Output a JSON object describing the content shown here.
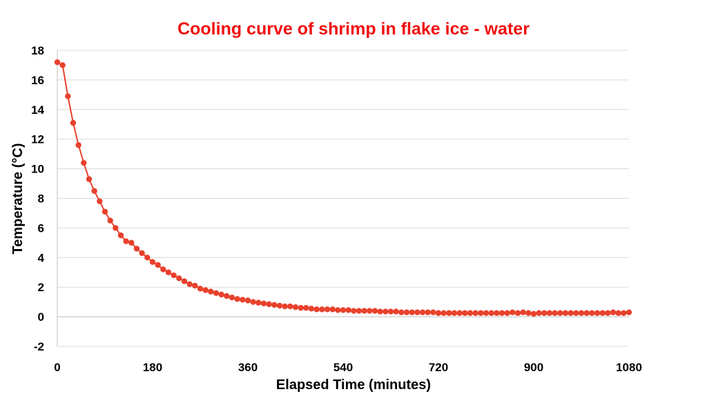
{
  "chart_data": {
    "type": "line",
    "title": "Cooling curve of shrimp in flake ice - water",
    "xlabel": "Elapsed Time (minutes)",
    "ylabel": "Temperature (°C)",
    "xlim": [
      0,
      1080
    ],
    "ylim": [
      -2,
      18
    ],
    "x_ticks": [
      0,
      180,
      360,
      540,
      720,
      900,
      1080
    ],
    "y_ticks": [
      -2,
      0,
      2,
      4,
      6,
      8,
      10,
      12,
      14,
      16,
      18
    ],
    "grid": "horizontal",
    "legend": "none",
    "colors": {
      "series": "#E8412C",
      "title": "#F20F0F",
      "grid": "#D9D9D9",
      "axis": "#BFBFBF"
    },
    "series": [
      {
        "x": [
          0,
          10,
          20,
          30,
          40,
          50,
          60,
          70,
          80,
          90,
          100,
          110,
          120,
          130,
          140,
          150,
          160,
          170,
          180,
          190,
          200,
          210,
          220,
          230,
          240,
          250,
          260,
          270,
          280,
          290,
          300,
          310,
          320,
          330,
          340,
          350,
          360,
          370,
          380,
          390,
          400,
          410,
          420,
          430,
          440,
          450,
          460,
          470,
          480,
          490,
          500,
          510,
          520,
          530,
          540,
          550,
          560,
          570,
          580,
          590,
          600,
          610,
          620,
          630,
          640,
          650,
          660,
          670,
          680,
          690,
          700,
          710,
          720,
          730,
          740,
          750,
          760,
          770,
          780,
          790,
          800,
          810,
          820,
          830,
          840,
          850,
          860,
          870,
          880,
          890,
          900,
          910,
          920,
          930,
          940,
          950,
          960,
          970,
          980,
          990,
          1000,
          1010,
          1020,
          1030,
          1040,
          1050,
          1060,
          1070,
          1080
        ],
        "y": [
          17.2,
          17.0,
          14.9,
          13.1,
          11.6,
          10.4,
          9.3,
          8.5,
          7.8,
          7.1,
          6.5,
          6.0,
          5.5,
          5.1,
          5.0,
          4.6,
          4.3,
          4.0,
          3.7,
          3.5,
          3.2,
          3.0,
          2.8,
          2.6,
          2.4,
          2.2,
          2.1,
          1.9,
          1.8,
          1.7,
          1.6,
          1.5,
          1.4,
          1.3,
          1.2,
          1.15,
          1.1,
          1.0,
          0.95,
          0.9,
          0.85,
          0.8,
          0.75,
          0.7,
          0.7,
          0.65,
          0.6,
          0.6,
          0.55,
          0.5,
          0.5,
          0.5,
          0.5,
          0.45,
          0.45,
          0.45,
          0.4,
          0.4,
          0.4,
          0.4,
          0.4,
          0.35,
          0.35,
          0.35,
          0.35,
          0.3,
          0.3,
          0.3,
          0.3,
          0.3,
          0.3,
          0.3,
          0.25,
          0.25,
          0.25,
          0.25,
          0.25,
          0.25,
          0.25,
          0.25,
          0.25,
          0.25,
          0.25,
          0.25,
          0.25,
          0.25,
          0.3,
          0.25,
          0.3,
          0.25,
          0.2,
          0.25,
          0.25,
          0.25,
          0.25,
          0.25,
          0.25,
          0.25,
          0.25,
          0.25,
          0.25,
          0.25,
          0.25,
          0.25,
          0.25,
          0.3,
          0.25,
          0.25,
          0.3
        ]
      }
    ]
  }
}
